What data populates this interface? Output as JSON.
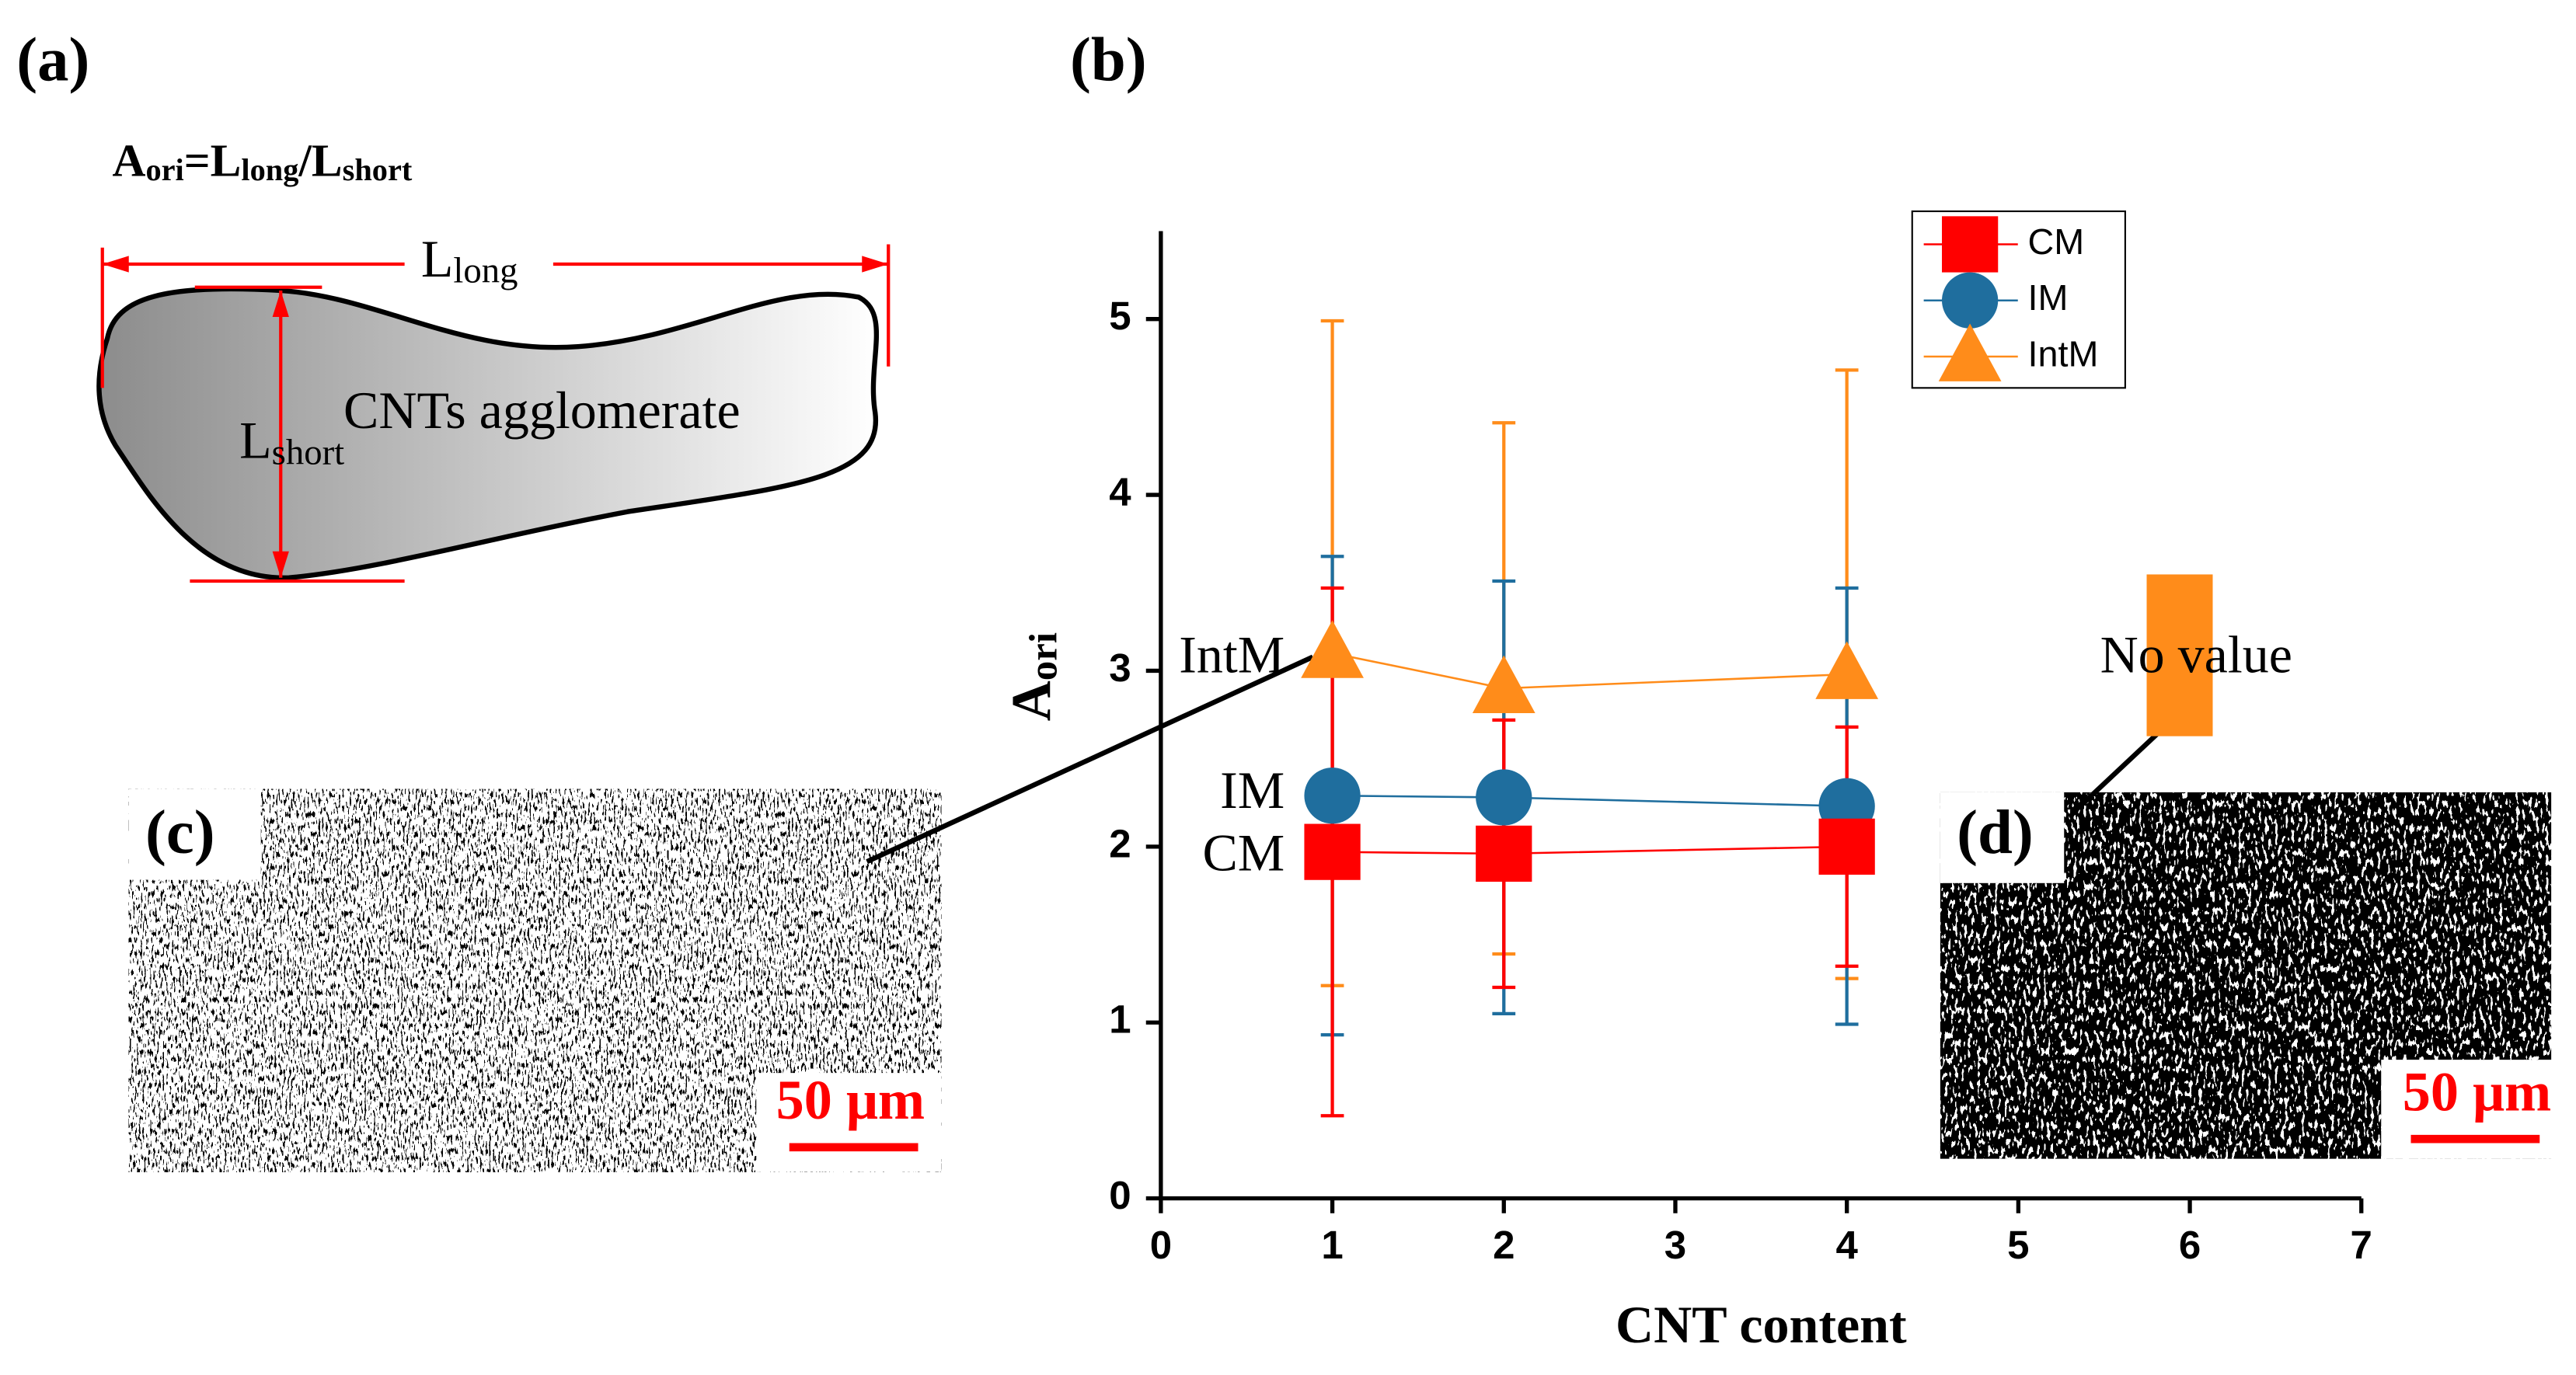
{
  "panels": {
    "a": "(a)",
    "b": "(b)",
    "c": "(c)",
    "d": "(d)"
  },
  "formula": [
    "A",
    "ori",
    "=",
    "L",
    "long",
    "/",
    "L",
    "short"
  ],
  "schematic": {
    "long_label": [
      "L",
      "long"
    ],
    "short_label": [
      "L",
      "short"
    ],
    "shape_label": "CNTs agglomerate"
  },
  "scale_bars": [
    "50 μm",
    "50 μm"
  ],
  "chart_data": {
    "type": "line",
    "xlabel": "CNT content",
    "ylabel": [
      "A",
      "ori"
    ],
    "xlim": [
      0,
      7
    ],
    "xticks": [
      0,
      1,
      2,
      3,
      4,
      5,
      6,
      7
    ],
    "ylim": [
      0,
      5.5
    ],
    "yticks": [
      0,
      1,
      2,
      3,
      4,
      5
    ],
    "x": [
      1,
      2,
      4
    ],
    "series": [
      {
        "name": "CM",
        "color": "#ff0000",
        "marker": "square",
        "values": [
          1.97,
          1.96,
          2.0
        ],
        "errors": [
          1.5,
          0.76,
          0.68
        ]
      },
      {
        "name": "IM",
        "color": "#1f6e9e",
        "marker": "circle",
        "values": [
          2.29,
          2.28,
          2.23
        ],
        "errors": [
          1.36,
          1.23,
          1.24
        ]
      },
      {
        "name": "IntM",
        "color": "#ff8c1a",
        "marker": "triangle",
        "values": [
          3.1,
          2.9,
          2.98
        ],
        "errors": [
          1.89,
          1.51,
          1.73
        ]
      }
    ],
    "annotations": [
      "IntM",
      "IM",
      "CM",
      "No value"
    ],
    "legend": "upper right"
  }
}
